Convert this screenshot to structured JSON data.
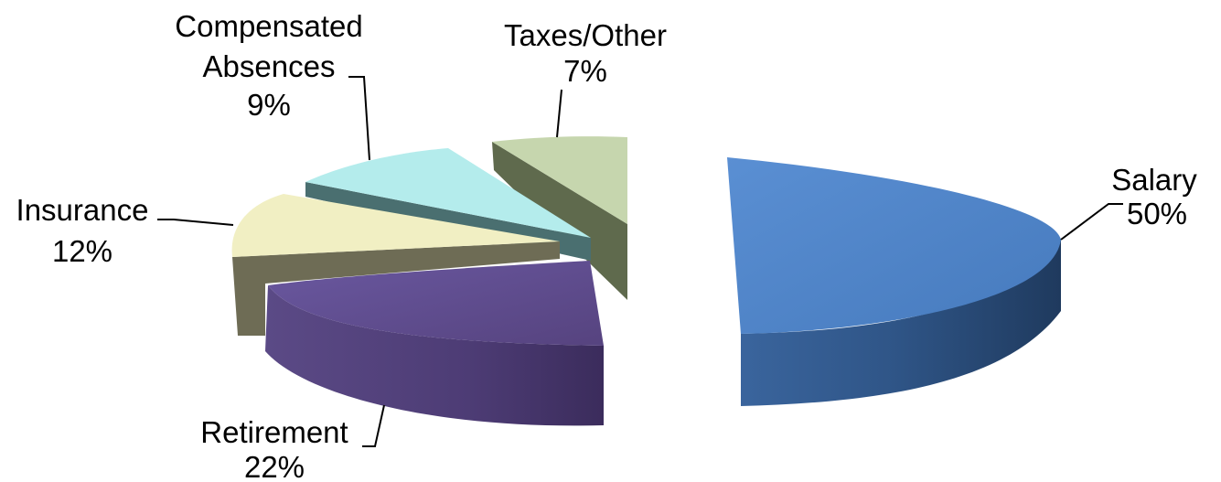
{
  "chart_data": {
    "type": "pie",
    "style": "3d-exploded",
    "slices": [
      {
        "label": "Salary",
        "value": 50,
        "value_label": "50%",
        "top_color": "#4f82c5",
        "side_color": "#2a4a78"
      },
      {
        "label": "Taxes/Other",
        "value": 7,
        "value_label": "7%",
        "top_color": "#c6d6ae",
        "side_color": "#5f6a4d"
      },
      {
        "label_lines": [
          "Compensated",
          "Absences"
        ],
        "value": 9,
        "value_label": "9%",
        "top_color": "#b4ecec",
        "side_color": "#4a6f70"
      },
      {
        "label": "Insurance",
        "value": 12,
        "value_label": "12%",
        "top_color": "#f1efc3",
        "side_color": "#6e6c55"
      },
      {
        "label": "Retirement",
        "value": 22,
        "value_label": "22%",
        "top_color": "#5c4a86",
        "side_color": "#47376a"
      }
    ]
  }
}
